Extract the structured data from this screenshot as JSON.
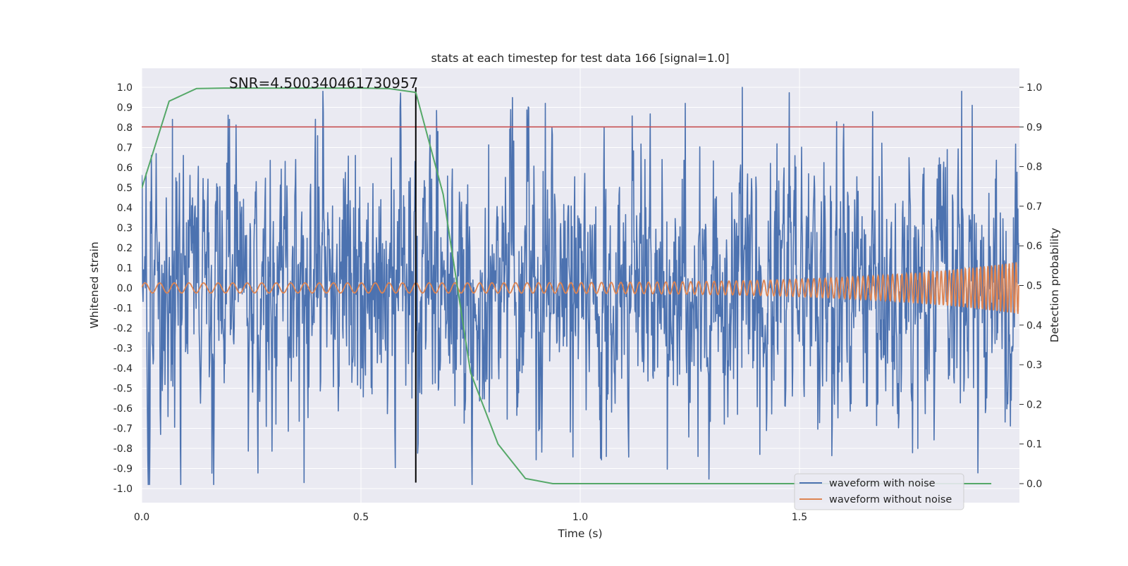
{
  "chart_data": {
    "type": "line",
    "title": "stats at each timestep for test data 166 [signal=1.0]",
    "annotation": "SNR=4.500340461730957",
    "xlabel": "Time (s)",
    "ylabel": "Whitened strain",
    "ylabel_right": "Detection probability",
    "xlim": [
      0.0,
      2.0
    ],
    "ylim": [
      -1.07,
      1.1
    ],
    "ylim_right": [
      -0.05,
      1.05
    ],
    "xticks": [
      "0.0",
      "0.5",
      "1.0",
      "1.5"
    ],
    "xtick_values": [
      0.0,
      0.5,
      1.0,
      1.5
    ],
    "yticks": [
      "1.0",
      "0.9",
      "0.8",
      "0.7",
      "0.6",
      "0.5",
      "0.4",
      "0.3",
      "0.2",
      "0.1",
      "0.0",
      "-0.1",
      "-0.2",
      "-0.3",
      "-0.4",
      "-0.5",
      "-0.6",
      "-0.7",
      "-0.8",
      "-0.9",
      "-1.0"
    ],
    "ytick_values": [
      1.0,
      0.9,
      0.8,
      0.7,
      0.6,
      0.5,
      0.4,
      0.3,
      0.2,
      0.1,
      0.0,
      -0.1,
      -0.2,
      -0.3,
      -0.4,
      -0.5,
      -0.6,
      -0.7,
      -0.8,
      -0.9,
      -1.0
    ],
    "yticks_right": [
      "1.0",
      "0.9",
      "0.8",
      "0.7",
      "0.6",
      "0.5",
      "0.4",
      "0.3",
      "0.2",
      "0.1",
      "0.0"
    ],
    "ytick_right_values": [
      1.0,
      0.9,
      0.8,
      0.7,
      0.6,
      0.5,
      0.4,
      0.3,
      0.2,
      0.1,
      0.0
    ],
    "threshold": {
      "name": "detection threshold",
      "value": 0.9,
      "axis": "right",
      "color": "#c44e52"
    },
    "marker_line": {
      "name": "merger time",
      "x": 0.625,
      "y_range": [
        -0.97,
        1.0
      ],
      "color": "#000000"
    },
    "series": [
      {
        "name": "waveform with noise",
        "color": "#4c72b0",
        "axis": "left",
        "t_start": 0.0,
        "t_end": 2.0,
        "n_samples": 2000,
        "amplitude_envelope": 0.55,
        "peak_samples": [
          {
            "x": 0.07,
            "y": 0.84
          },
          {
            "x": 0.2,
            "y": 0.84
          },
          {
            "x": 0.37,
            "y": 0.95
          },
          {
            "x": 0.37,
            "y": -0.97
          },
          {
            "x": 0.92,
            "y": 0.92
          },
          {
            "x": 1.06,
            "y": 1.0
          },
          {
            "x": 1.06,
            "y": -0.84
          },
          {
            "x": 1.24,
            "y": 0.92
          },
          {
            "x": 1.37,
            "y": 1.0
          },
          {
            "x": 1.41,
            "y": -0.83
          },
          {
            "x": 1.77,
            "y": -0.8
          },
          {
            "x": 1.87,
            "y": 0.98
          }
        ]
      },
      {
        "name": "waveform without noise",
        "color": "#dd8452",
        "axis": "left",
        "amplitude_start": 0.025,
        "amplitude_end": 0.13,
        "freq_start_hz": 30,
        "freq_end_hz": 130
      },
      {
        "name": "Detection probability",
        "color": "#55a868",
        "axis": "right",
        "x": [
          0.0,
          0.0625,
          0.125,
          0.1875,
          0.25,
          0.3125,
          0.375,
          0.4375,
          0.5,
          0.5625,
          0.625,
          0.6875,
          0.75,
          0.8125,
          0.875,
          0.9375,
          1.0,
          1.0625,
          1.125,
          1.1875,
          1.25,
          1.3125,
          1.375,
          1.4375,
          1.5,
          1.5625,
          1.625,
          1.6875,
          1.75,
          1.8125,
          1.875,
          1.9375
        ],
        "y": [
          0.745,
          0.965,
          0.997,
          0.998,
          0.998,
          0.998,
          0.998,
          0.998,
          0.998,
          0.997,
          0.987,
          0.73,
          0.28,
          0.1,
          0.013,
          0.0,
          0.0,
          0.0,
          0.0,
          0.0,
          0.0,
          0.0,
          0.0,
          0.0,
          0.0,
          0.0,
          0.0,
          0.0,
          0.0,
          0.0,
          0.0,
          0.0
        ]
      }
    ],
    "legend": {
      "placement": "lower-right",
      "entries": [
        "waveform with noise",
        "waveform without noise"
      ]
    }
  }
}
